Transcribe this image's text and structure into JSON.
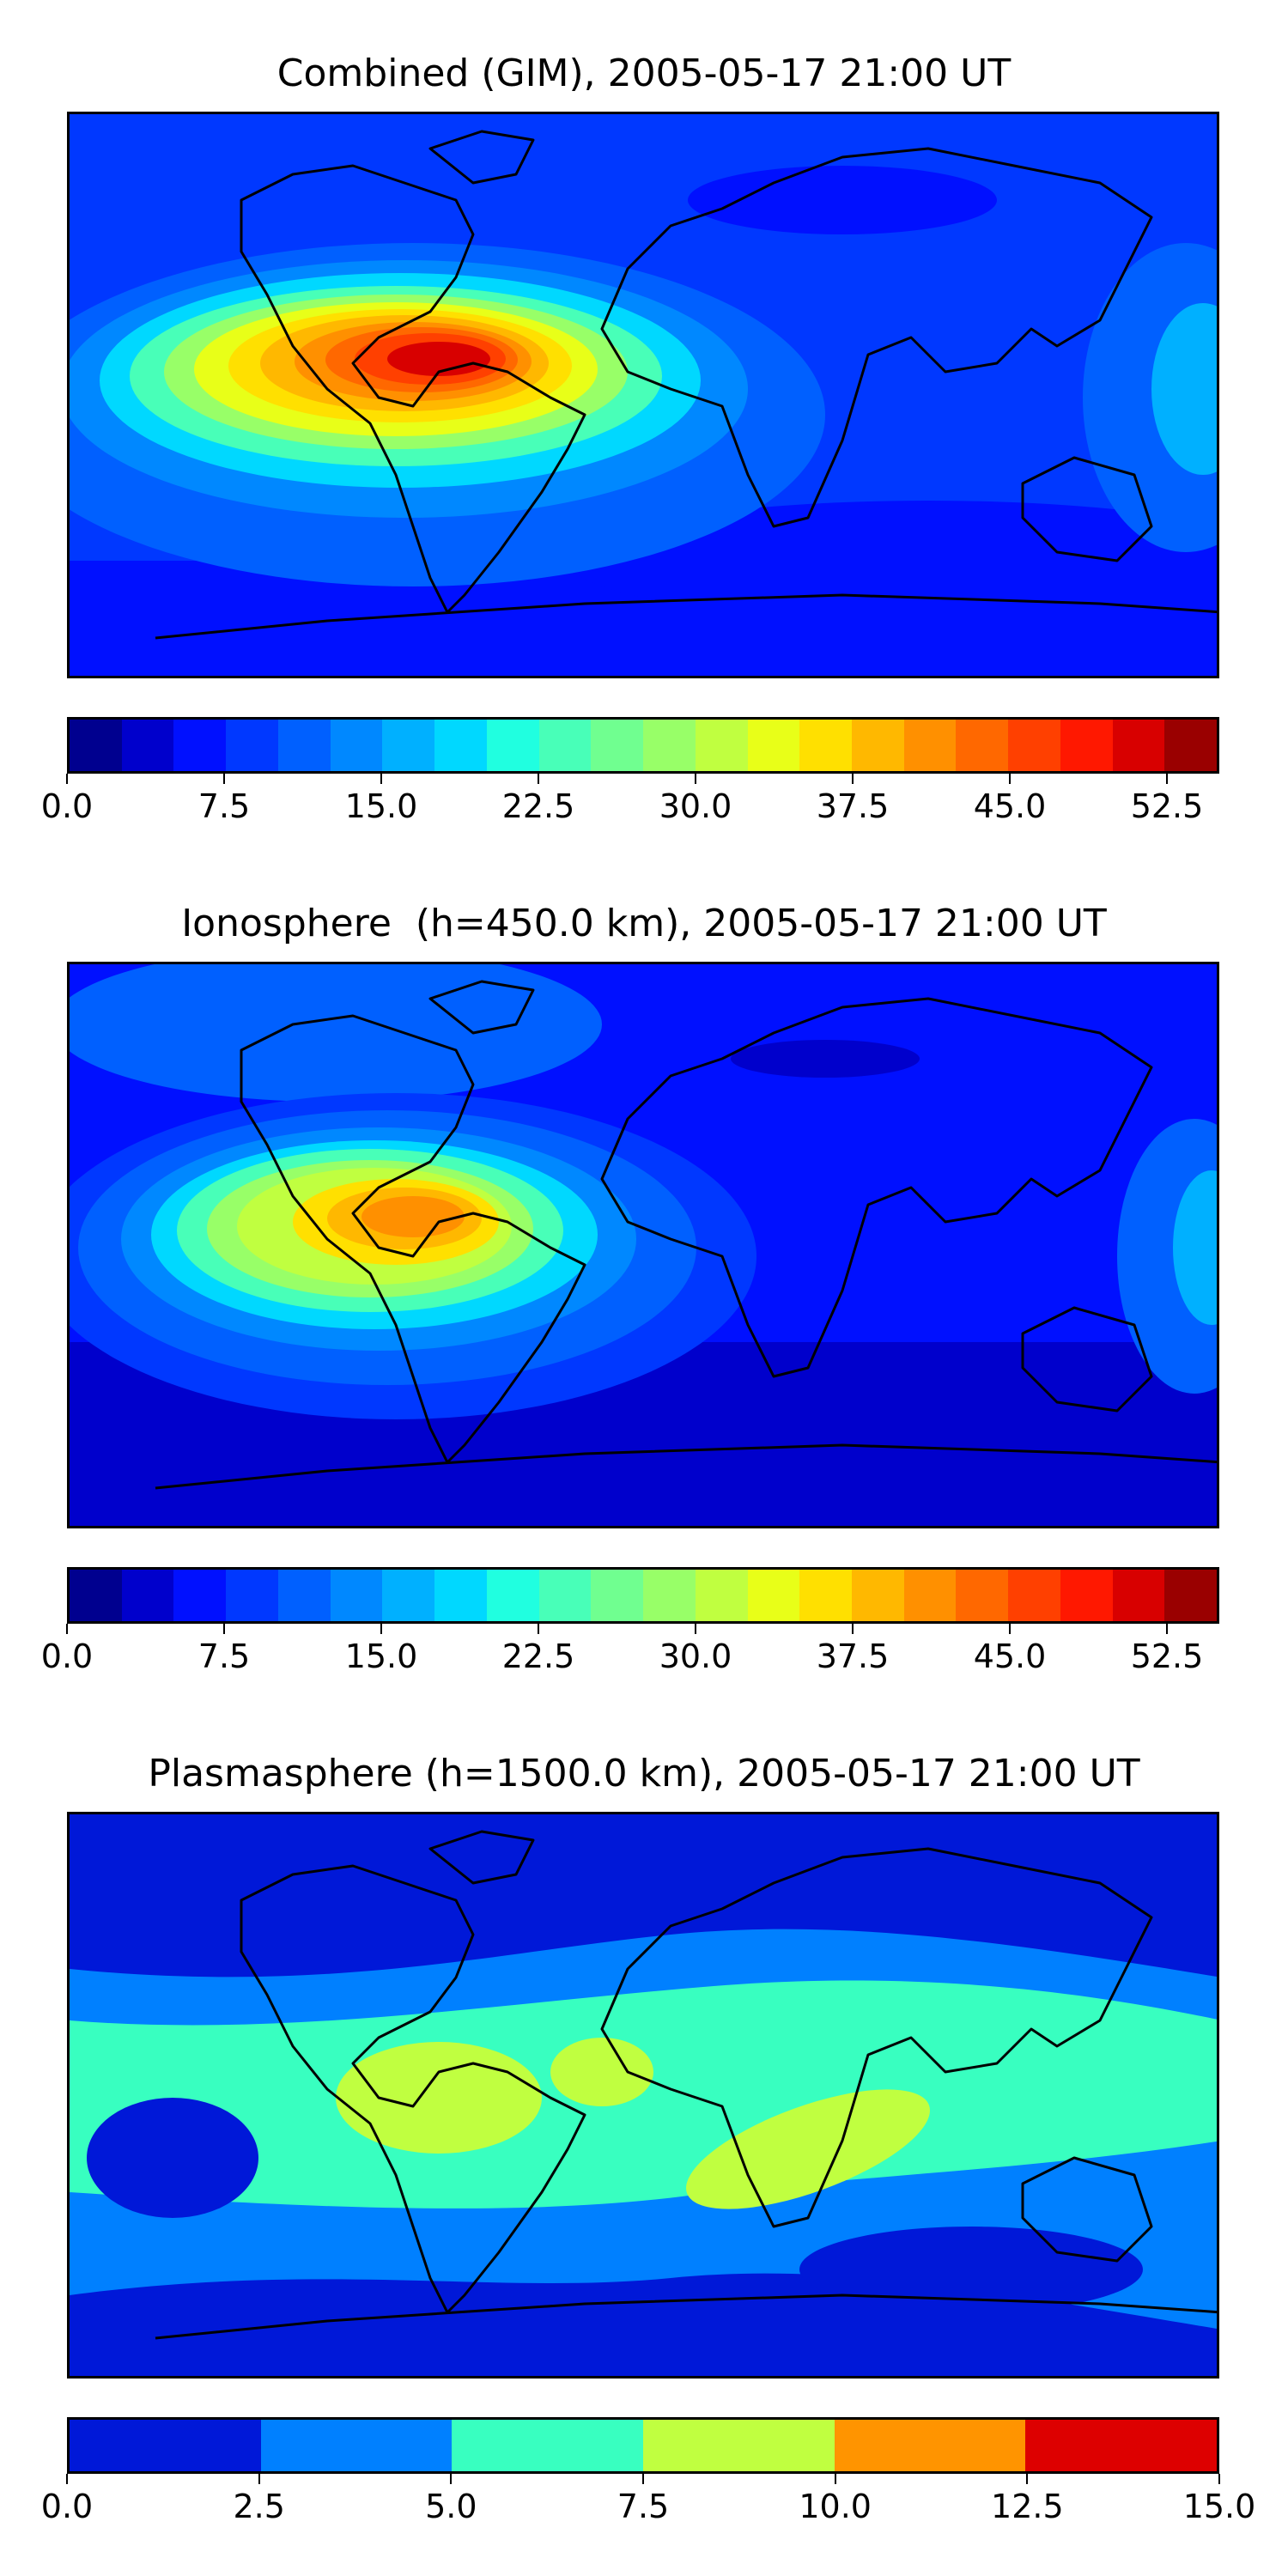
{
  "panels": [
    {
      "title": "Combined (GIM), 2005-05-17 21:00 UT",
      "colorbar": {
        "ticks": [
          "0.0",
          "7.5",
          "15.0",
          "22.5",
          "30.0",
          "37.5",
          "45.0",
          "52.5"
        ],
        "tick_values": [
          0,
          7.5,
          15,
          22.5,
          30,
          37.5,
          45,
          52.5
        ],
        "range": [
          0,
          55
        ],
        "colors": [
          "#00008f",
          "#0000cc",
          "#0010ff",
          "#0038ff",
          "#0060ff",
          "#0088ff",
          "#00b0ff",
          "#00d8ff",
          "#20ffe0",
          "#48ffb8",
          "#70ff90",
          "#98ff68",
          "#c0ff40",
          "#e8ff18",
          "#ffe000",
          "#ffb800",
          "#ff9000",
          "#ff6800",
          "#ff4000",
          "#ff1800",
          "#d80000",
          "#9a0000"
        ]
      }
    },
    {
      "title": "Ionosphere  (h=450.0 km), 2005-05-17 21:00 UT",
      "colorbar": {
        "ticks": [
          "0.0",
          "7.5",
          "15.0",
          "22.5",
          "30.0",
          "37.5",
          "45.0",
          "52.5"
        ],
        "tick_values": [
          0,
          7.5,
          15,
          22.5,
          30,
          37.5,
          45,
          52.5
        ],
        "range": [
          0,
          55
        ],
        "colors": [
          "#00008f",
          "#0000cc",
          "#0010ff",
          "#0038ff",
          "#0060ff",
          "#0088ff",
          "#00b0ff",
          "#00d8ff",
          "#20ffe0",
          "#48ffb8",
          "#70ff90",
          "#98ff68",
          "#c0ff40",
          "#e8ff18",
          "#ffe000",
          "#ffb800",
          "#ff9000",
          "#ff6800",
          "#ff4000",
          "#ff1800",
          "#d80000",
          "#9a0000"
        ]
      }
    },
    {
      "title": "Plasmasphere (h=1500.0 km), 2005-05-17 21:00 UT",
      "colorbar": {
        "ticks": [
          "0.0",
          "2.5",
          "5.0",
          "7.5",
          "10.0",
          "12.5",
          "15.0"
        ],
        "tick_values": [
          0,
          2.5,
          5,
          7.5,
          10,
          12.5,
          15
        ],
        "range": [
          0,
          15
        ],
        "colors": [
          "#0018d8",
          "#0080ff",
          "#38ffc0",
          "#c0ff40",
          "#ff9400",
          "#dd0000"
        ]
      }
    }
  ]
}
